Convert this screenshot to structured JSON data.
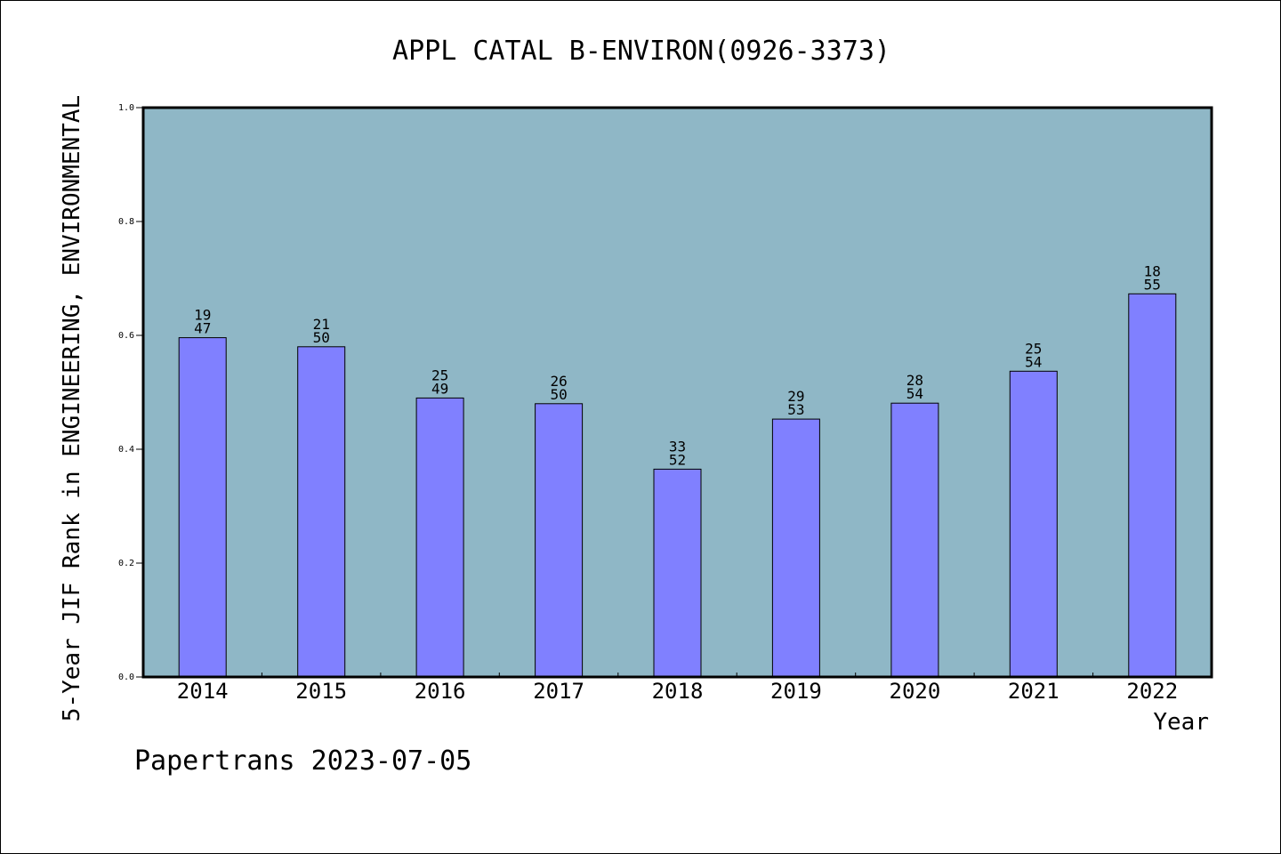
{
  "chart_data": {
    "type": "bar",
    "title": "APPL CATAL B-ENVIRON(0926-3373)",
    "xlabel": "Year",
    "ylabel": "5-Year JIF Rank in ENGINEERING, ENVIRONMENTAL",
    "ylim": [
      0,
      1.0
    ],
    "yticks": [
      "0.0",
      "0.2",
      "0.4",
      "0.6",
      "0.8",
      "1.0"
    ],
    "grid": false,
    "categories": [
      "2014",
      "2015",
      "2016",
      "2017",
      "2018",
      "2019",
      "2020",
      "2021",
      "2022"
    ],
    "values": [
      0.596,
      0.58,
      0.49,
      0.48,
      0.365,
      0.453,
      0.481,
      0.537,
      0.673
    ],
    "bar_labels": [
      {
        "rank": "19",
        "total": "47"
      },
      {
        "rank": "21",
        "total": "50"
      },
      {
        "rank": "25",
        "total": "49"
      },
      {
        "rank": "26",
        "total": "50"
      },
      {
        "rank": "33",
        "total": "52"
      },
      {
        "rank": "29",
        "total": "53"
      },
      {
        "rank": "28",
        "total": "54"
      },
      {
        "rank": "25",
        "total": "54"
      },
      {
        "rank": "18",
        "total": "55"
      }
    ],
    "colors": {
      "plot_background": "#8fb7c6",
      "bar_fill": "#8080ff",
      "bar_stroke": "#000000"
    }
  },
  "footer": {
    "text": "Papertrans 2023-07-05"
  }
}
